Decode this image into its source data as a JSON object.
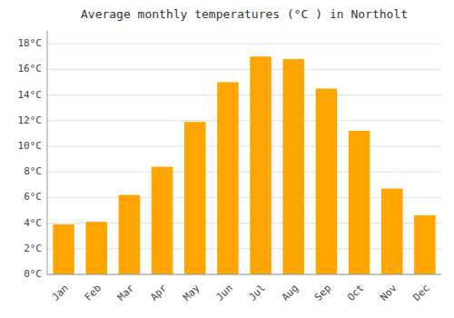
{
  "chart_data": {
    "type": "bar",
    "title": "Average monthly temperatures (°C ) in Northolt",
    "categories": [
      "Jan",
      "Feb",
      "Mar",
      "Apr",
      "May",
      "Jun",
      "Jul",
      "Aug",
      "Sep",
      "Oct",
      "Nov",
      "Dec"
    ],
    "values": [
      3.9,
      4.1,
      6.2,
      8.4,
      11.9,
      15.0,
      17.0,
      16.8,
      14.5,
      11.2,
      6.7,
      4.6
    ],
    "color": "#FFA500",
    "ylim": [
      0,
      19
    ],
    "yticks": [
      {
        "value": 0,
        "label": "0°C"
      },
      {
        "value": 2,
        "label": "2°C"
      },
      {
        "value": 4,
        "label": "4°C"
      },
      {
        "value": 6,
        "label": "6°C"
      },
      {
        "value": 8,
        "label": "8°C"
      },
      {
        "value": 10,
        "label": "10°C"
      },
      {
        "value": 12,
        "label": "12°C"
      },
      {
        "value": 14,
        "label": "14°C"
      },
      {
        "value": 16,
        "label": "16°C"
      },
      {
        "value": 18,
        "label": "18°C"
      }
    ],
    "grid": true
  }
}
